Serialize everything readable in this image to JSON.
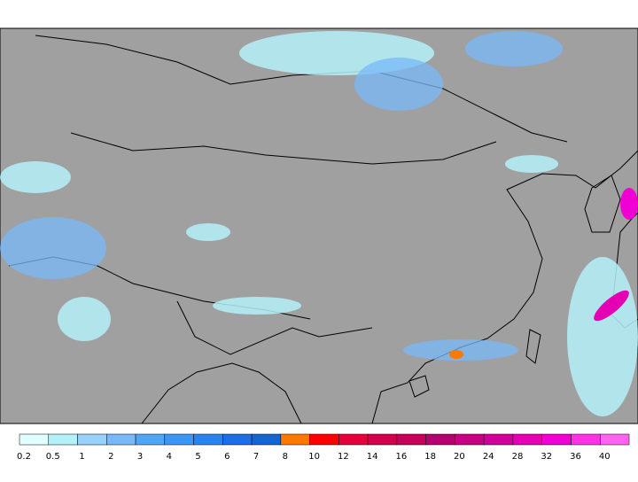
{
  "legend": {
    "items": [
      {
        "label": "0.2",
        "color": "#e0ffff"
      },
      {
        "label": "0.5",
        "color": "#b4f0f8"
      },
      {
        "label": "1",
        "color": "#96d2fa"
      },
      {
        "label": "2",
        "color": "#78b9fa"
      },
      {
        "label": "3",
        "color": "#50a5f5"
      },
      {
        "label": "4",
        "color": "#3c96f5"
      },
      {
        "label": "5",
        "color": "#2882f0"
      },
      {
        "label": "6",
        "color": "#1e6ee6"
      },
      {
        "label": "7",
        "color": "#1464d2"
      },
      {
        "label": "8",
        "color": "#ff7800"
      },
      {
        "label": "10",
        "color": "#ff0000"
      },
      {
        "label": "12",
        "color": "#e6003c"
      },
      {
        "label": "14",
        "color": "#d2004b"
      },
      {
        "label": "16",
        "color": "#c8005a"
      },
      {
        "label": "18",
        "color": "#b4006e"
      },
      {
        "label": "20",
        "color": "#c80082"
      },
      {
        "label": "24",
        "color": "#d2009b"
      },
      {
        "label": "28",
        "color": "#e600b4"
      },
      {
        "label": "32",
        "color": "#f000d2"
      },
      {
        "label": "36",
        "color": "#ff32e6"
      },
      {
        "label": "40",
        "color": "#ff64f0"
      }
    ]
  }
}
